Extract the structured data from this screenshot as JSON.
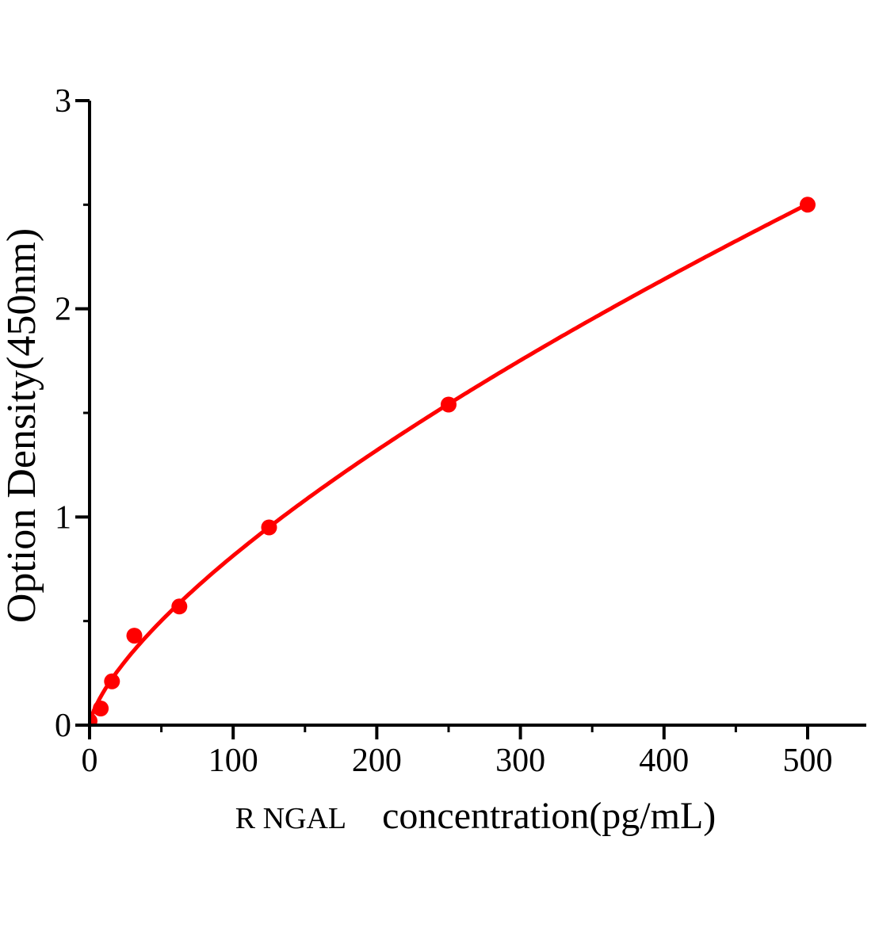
{
  "chart_data": {
    "type": "scatter",
    "title": "",
    "xlabel_prefix": "R NGAL",
    "xlabel_main": "concentration(pg/mL)",
    "ylabel": "Option Density(450nm)",
    "x": [
      0,
      7.8,
      15.6,
      31.2,
      62.5,
      125,
      250,
      500
    ],
    "y": [
      0.02,
      0.08,
      0.21,
      0.43,
      0.57,
      0.95,
      1.54,
      2.5
    ],
    "xlim": [
      0,
      545
    ],
    "ylim": [
      0,
      3
    ],
    "x_major_ticks": [
      0,
      100,
      200,
      300,
      400,
      500
    ],
    "x_minor_ticks": [
      50,
      150,
      250,
      350,
      450
    ],
    "y_major_ticks": [
      0,
      1,
      2,
      3
    ],
    "y_minor_ticks": [
      0.5,
      1.5,
      2.5
    ],
    "curve_fit": {
      "type": "power",
      "a": 0.0327,
      "b": 0.698
    },
    "grid": false,
    "legend": false,
    "colors": {
      "series": "#ff0000",
      "axis": "#000000"
    }
  }
}
